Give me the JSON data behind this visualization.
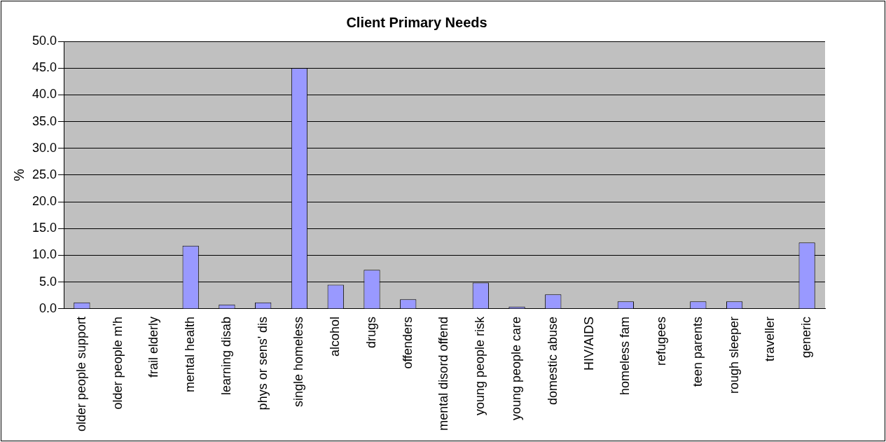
{
  "chart_data": {
    "type": "bar",
    "title": "Client Primary Needs",
    "ylabel": "%",
    "categories": [
      "older people support",
      "older people m'h",
      "frail elderly",
      "mental health",
      "learning disab",
      "phys or sens' dis",
      "single homeless",
      "alcohol",
      "drugs",
      "offenders",
      "mental disord offend",
      "young people risk",
      "young people care",
      "domestic abuse",
      "HIV/AIDS",
      "homeless fam",
      "refugees",
      "teen parents",
      "rough sleeper",
      "traveller",
      "generic"
    ],
    "values": [
      1.2,
      0,
      0,
      11.8,
      0.8,
      1.2,
      45.0,
      4.5,
      7.3,
      1.8,
      0,
      4.9,
      0.4,
      2.7,
      0,
      1.4,
      0,
      1.4,
      1.4,
      0,
      12.4
    ],
    "color": "#9999ff",
    "ylim": [
      0,
      50
    ],
    "yticks": [
      {
        "value": 0,
        "label": "0.0"
      },
      {
        "value": 5,
        "label": "5.0"
      },
      {
        "value": 10,
        "label": "10.0"
      },
      {
        "value": 15,
        "label": "15.0"
      },
      {
        "value": 20,
        "label": "20.0"
      },
      {
        "value": 25,
        "label": "25.0"
      },
      {
        "value": 30,
        "label": "30.0"
      },
      {
        "value": 35,
        "label": "35.0"
      },
      {
        "value": 40,
        "label": "40.0"
      },
      {
        "value": 45,
        "label": "45.0"
      },
      {
        "value": 50,
        "label": "50.0"
      }
    ],
    "grid": "y",
    "legend": false
  }
}
